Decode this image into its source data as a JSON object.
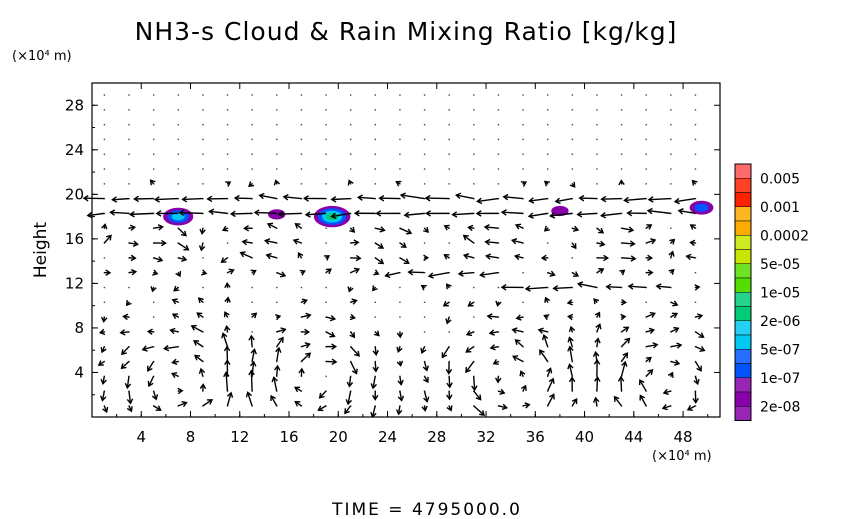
{
  "chart_data": {
    "type": "contour-vector",
    "title": "NH3-s Cloud & Rain Mixing Ratio [kg/kg]",
    "ylabel": "Height",
    "x_unit": "(×10⁴ m)",
    "y_unit": "(×10⁴ m)",
    "xlim": [
      0,
      51
    ],
    "ylim": [
      0,
      30
    ],
    "xticks": [
      "4",
      "8",
      "12",
      "16",
      "20",
      "24",
      "28",
      "32",
      "36",
      "40",
      "44",
      "48"
    ],
    "yticks": [
      "4",
      "8",
      "12",
      "16",
      "20",
      "24",
      "28"
    ],
    "footer": "TIME = 4795000.0",
    "legend": {
      "labels": [
        "0.005",
        "0.001",
        "0.0002",
        "5e-05",
        "1e-05",
        "2e-06",
        "5e-07",
        "1e-07",
        "2e-08"
      ],
      "colors": [
        "#ff6a6a",
        "#ff2200",
        "#ffaa00",
        "#c8e600",
        "#55dd00",
        "#00cc77",
        "#00c8f0",
        "#0055ff",
        "#8800aa"
      ]
    },
    "cloud_regions": [
      {
        "x": 7,
        "y": 18.0,
        "max_level": "5e-07"
      },
      {
        "x": 15,
        "y": 18.2,
        "max_level": "2e-08"
      },
      {
        "x": 19.5,
        "y": 18.0,
        "max_level": "2e-06"
      },
      {
        "x": 38,
        "y": 18.5,
        "max_level": "2e-08"
      },
      {
        "x": 49.5,
        "y": 18.8,
        "max_level": "1e-07"
      }
    ]
  }
}
